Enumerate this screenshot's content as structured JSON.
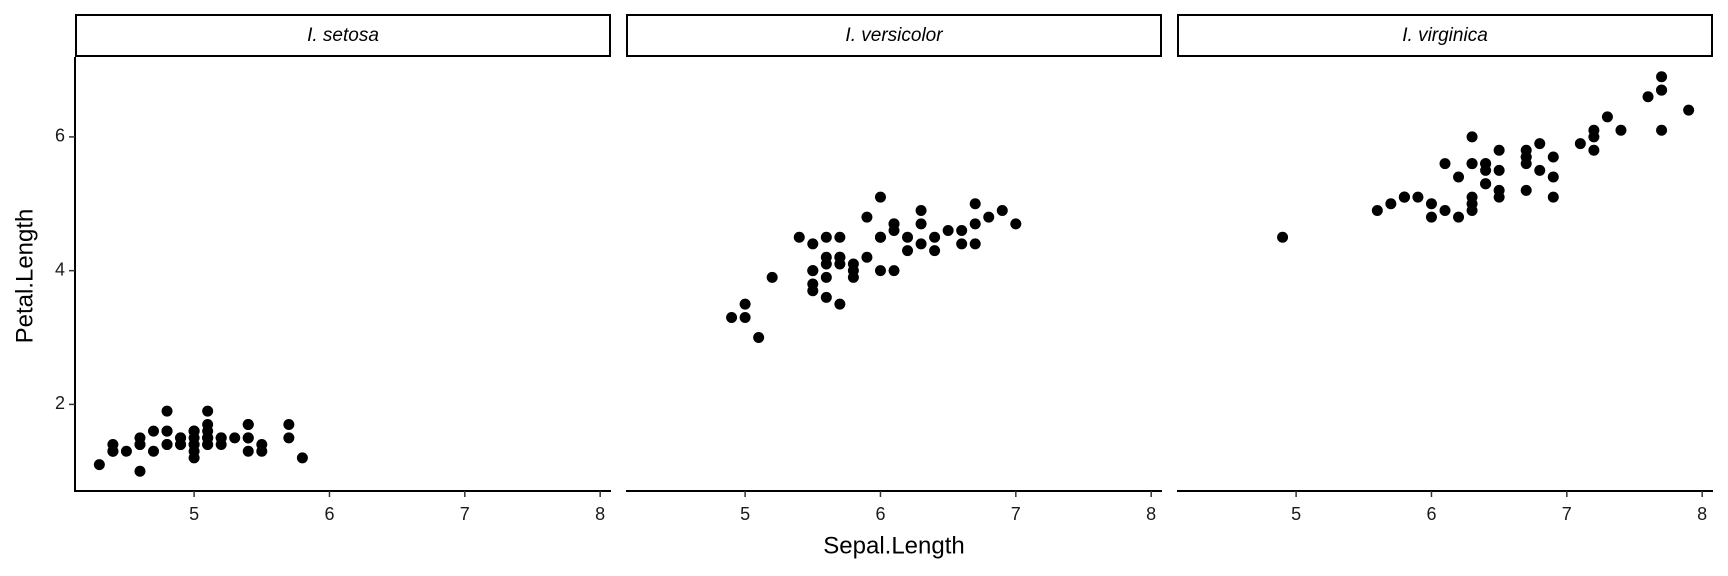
{
  "chart_data": {
    "type": "scatter",
    "x_label": "Sepal.Length",
    "y_label": "Petal.Length",
    "xlim": [
      4.12,
      8.08
    ],
    "ylim": [
      0.705,
      7.195
    ],
    "xticks": [
      5,
      6,
      7,
      8
    ],
    "yticks": [
      2,
      4,
      6
    ],
    "grid": false,
    "series": [
      {
        "name": "I. setosa",
        "color": "#000000",
        "x": [
          5.1,
          4.9,
          4.7,
          4.6,
          5.0,
          5.4,
          4.6,
          5.0,
          4.4,
          4.9,
          5.4,
          4.8,
          4.8,
          4.3,
          5.8,
          5.7,
          5.4,
          5.1,
          5.7,
          5.1,
          5.4,
          5.1,
          4.6,
          5.1,
          4.8,
          5.0,
          5.0,
          5.2,
          5.2,
          4.7,
          4.8,
          5.4,
          5.2,
          5.5,
          4.9,
          5.0,
          5.5,
          4.9,
          4.4,
          5.1,
          5.0,
          4.5,
          4.4,
          5.0,
          5.1,
          4.8,
          5.1,
          4.6,
          5.3,
          5.0
        ],
        "values": [
          1.4,
          1.4,
          1.3,
          1.5,
          1.4,
          1.7,
          1.4,
          1.5,
          1.4,
          1.5,
          1.5,
          1.6,
          1.4,
          1.1,
          1.2,
          1.5,
          1.3,
          1.4,
          1.7,
          1.5,
          1.7,
          1.5,
          1.0,
          1.7,
          1.9,
          1.6,
          1.6,
          1.5,
          1.4,
          1.6,
          1.6,
          1.5,
          1.5,
          1.4,
          1.5,
          1.2,
          1.3,
          1.4,
          1.3,
          1.5,
          1.3,
          1.3,
          1.3,
          1.6,
          1.9,
          1.4,
          1.6,
          1.4,
          1.5,
          1.4
        ]
      },
      {
        "name": "I. versicolor",
        "color": "#000000",
        "x": [
          7.0,
          6.4,
          6.9,
          5.5,
          6.5,
          5.7,
          6.3,
          4.9,
          6.6,
          5.2,
          5.0,
          5.9,
          6.0,
          6.1,
          5.6,
          6.7,
          5.6,
          5.8,
          6.2,
          5.6,
          5.9,
          6.1,
          6.3,
          6.1,
          6.4,
          6.6,
          6.8,
          6.7,
          6.0,
          5.7,
          5.5,
          5.5,
          5.8,
          6.0,
          5.4,
          6.0,
          6.7,
          6.3,
          5.6,
          5.5,
          5.5,
          6.1,
          5.8,
          5.0,
          5.6,
          5.7,
          5.7,
          6.2,
          5.1,
          5.7
        ],
        "values": [
          4.7,
          4.5,
          4.9,
          4.0,
          4.6,
          4.5,
          4.7,
          3.3,
          4.6,
          3.9,
          3.5,
          4.2,
          4.0,
          4.7,
          3.6,
          4.4,
          4.5,
          4.1,
          4.5,
          3.9,
          4.8,
          4.0,
          4.9,
          4.7,
          4.3,
          4.4,
          4.8,
          5.0,
          4.5,
          3.5,
          3.8,
          3.7,
          3.9,
          5.1,
          4.5,
          4.5,
          4.7,
          4.4,
          4.1,
          4.0,
          4.4,
          4.6,
          4.0,
          3.3,
          4.2,
          4.2,
          4.2,
          4.3,
          3.0,
          4.1
        ]
      },
      {
        "name": "I. virginica",
        "color": "#000000",
        "x": [
          6.3,
          5.8,
          7.1,
          6.3,
          6.5,
          7.6,
          4.9,
          7.3,
          6.7,
          7.2,
          6.5,
          6.4,
          6.8,
          5.7,
          5.8,
          6.4,
          6.5,
          7.7,
          7.7,
          6.0,
          6.9,
          5.6,
          7.7,
          6.3,
          6.7,
          7.2,
          6.2,
          6.1,
          6.4,
          7.2,
          7.4,
          7.9,
          6.4,
          6.3,
          6.1,
          7.7,
          6.3,
          6.4,
          6.0,
          6.9,
          6.7,
          6.9,
          5.8,
          6.8,
          6.7,
          6.7,
          6.3,
          6.5,
          6.2,
          5.9
        ],
        "values": [
          6.0,
          5.1,
          5.9,
          5.6,
          5.8,
          6.6,
          4.5,
          6.3,
          5.8,
          6.1,
          5.1,
          5.3,
          5.5,
          5.0,
          5.1,
          5.3,
          5.5,
          6.7,
          6.9,
          5.0,
          5.7,
          4.9,
          6.7,
          4.9,
          5.7,
          6.0,
          4.8,
          4.9,
          5.6,
          5.8,
          6.1,
          6.4,
          5.6,
          5.1,
          5.6,
          6.1,
          5.6,
          5.5,
          4.8,
          5.4,
          5.6,
          5.1,
          5.1,
          5.9,
          5.7,
          5.2,
          5.0,
          5.2,
          5.4,
          5.1
        ]
      }
    ]
  }
}
